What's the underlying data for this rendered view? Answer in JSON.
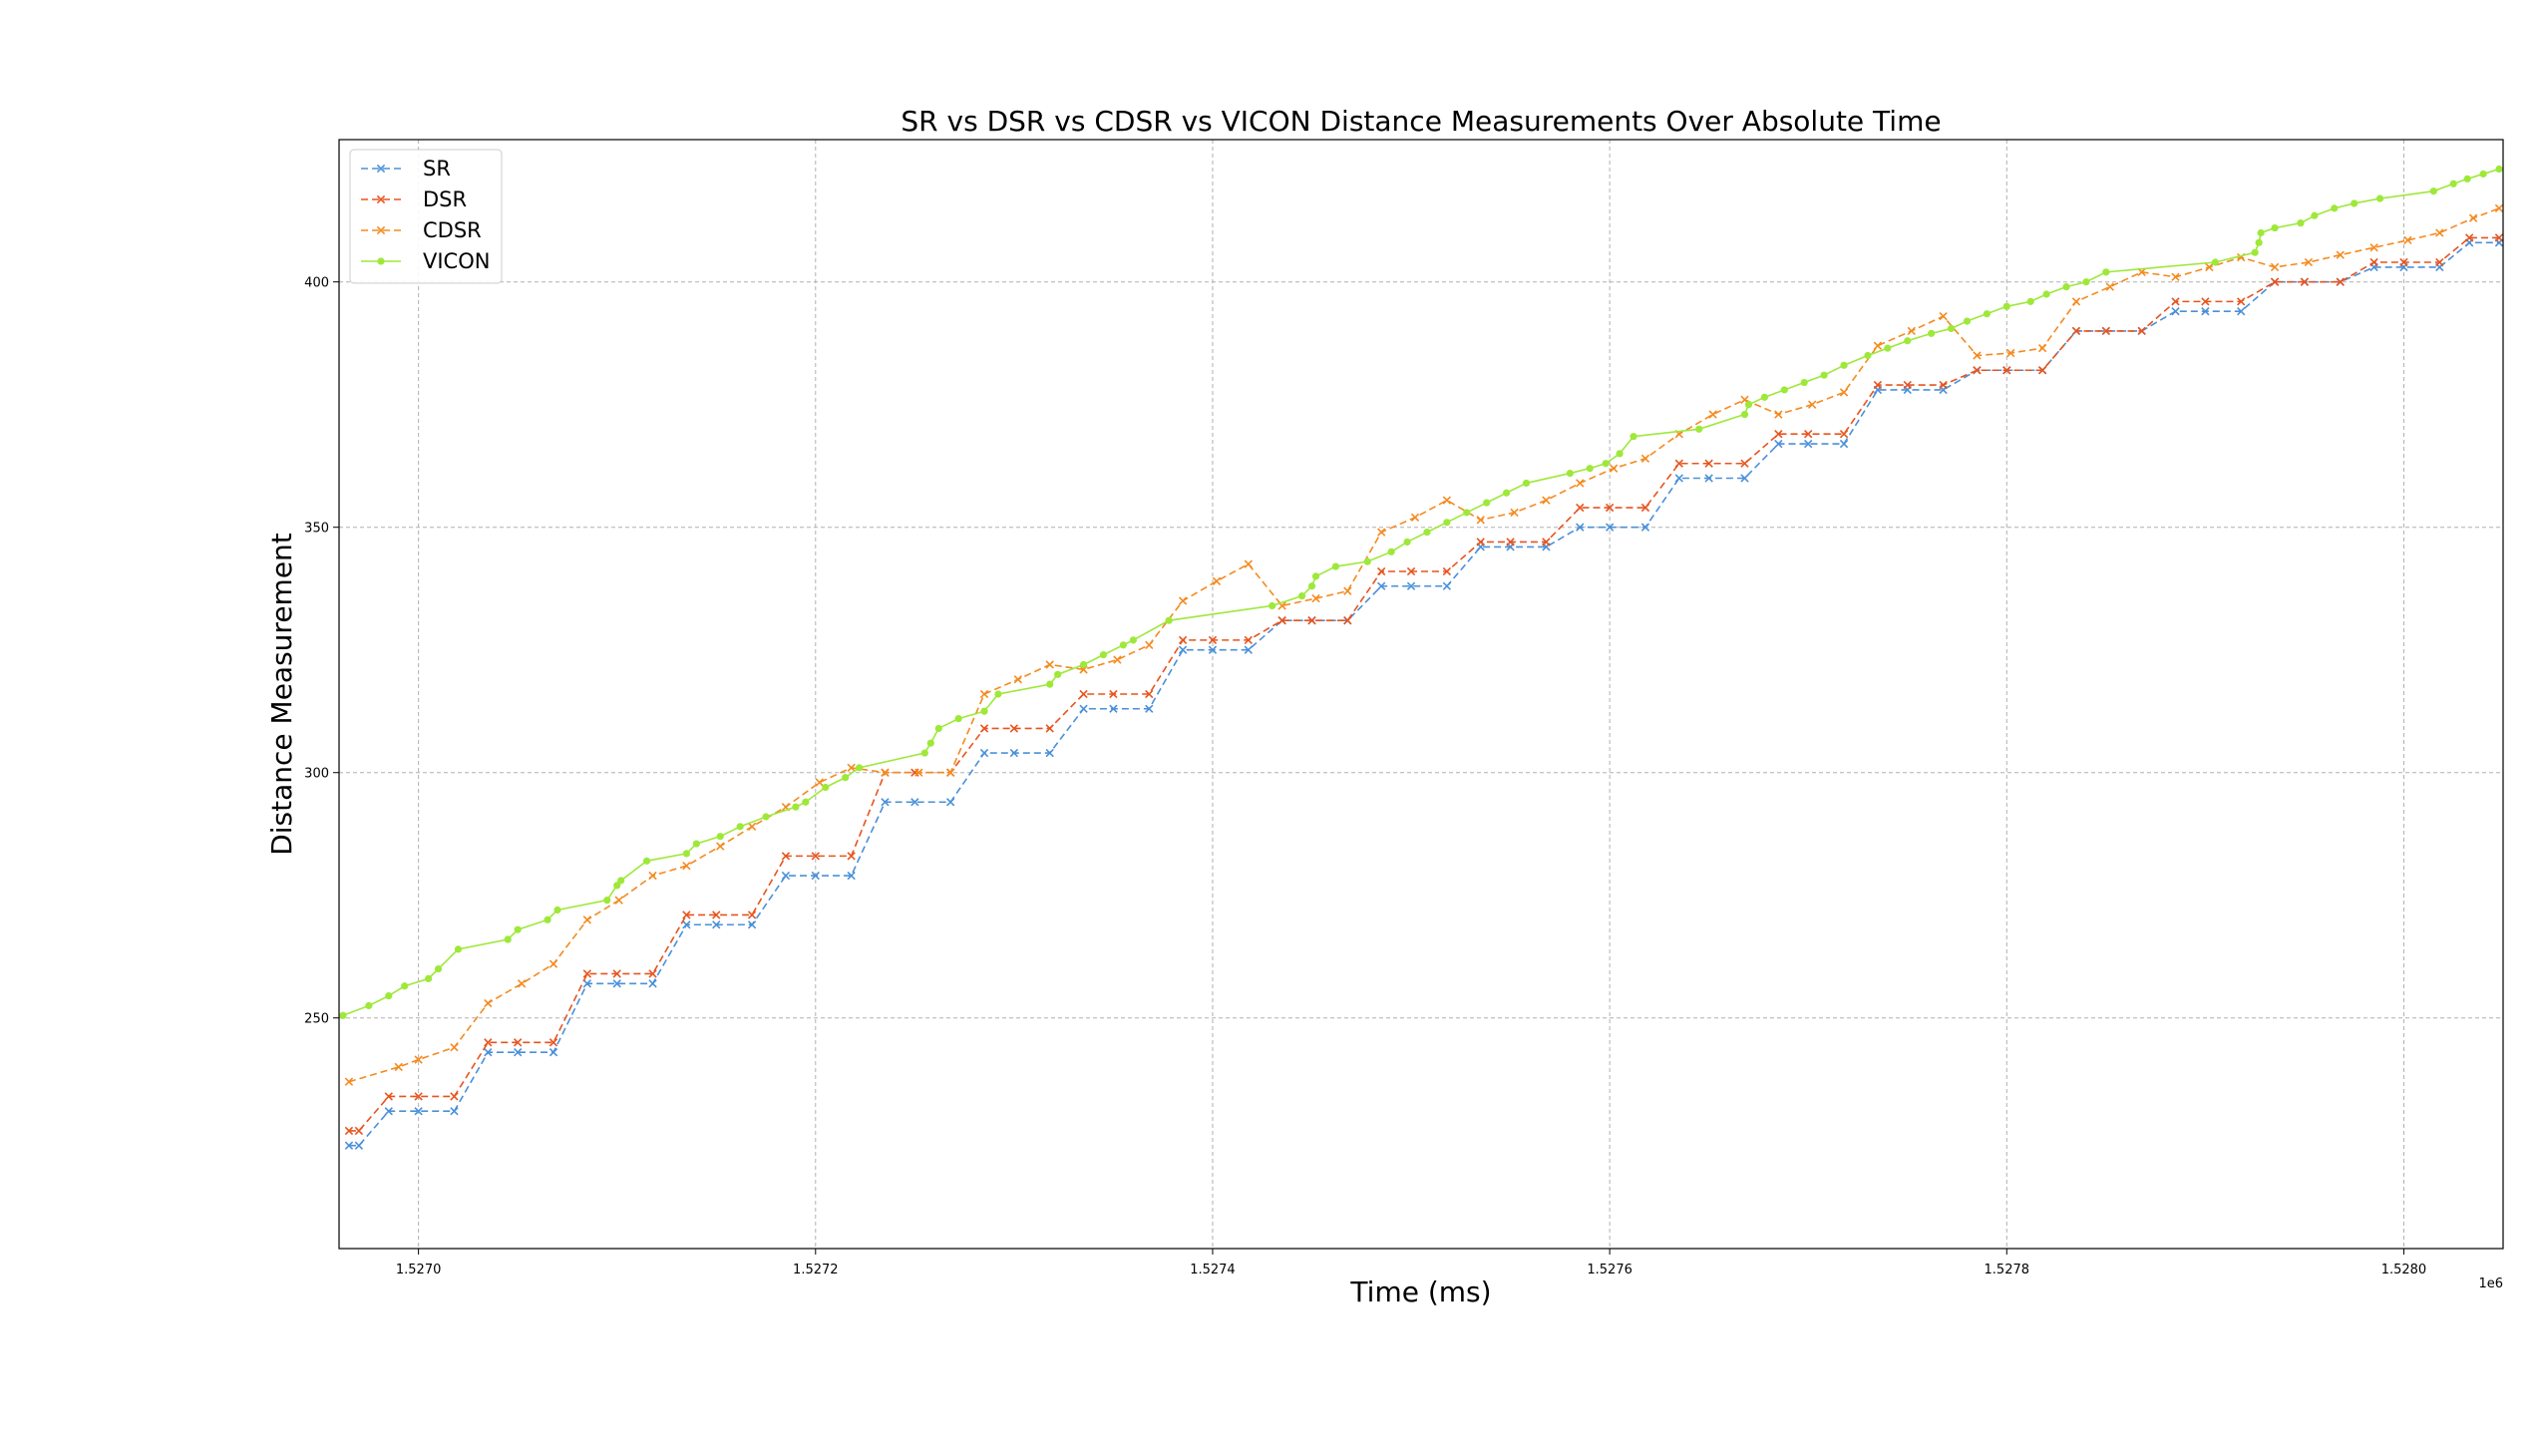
{
  "chart_data": {
    "type": "line",
    "title": "SR vs DSR vs CDSR vs VICON Distance Measurements Over Absolute Time",
    "xlabel": "Time (ms)",
    "ylabel": "Distance Measurement",
    "x_offset_label": "1e6",
    "xlim": [
      1.52696,
      1.52805
    ],
    "ylim": [
      203,
      429
    ],
    "x_ticks": [
      1.527,
      1.5272,
      1.5274,
      1.5276,
      1.5278,
      1.528
    ],
    "x_tick_labels": [
      "1.5270",
      "1.5272",
      "1.5274",
      "1.5276",
      "1.5278",
      "1.5280"
    ],
    "y_ticks": [
      250,
      300,
      350,
      400
    ],
    "y_tick_labels": [
      "250",
      "300",
      "350",
      "400"
    ],
    "grid": true,
    "legend_position": "top-left",
    "series": [
      {
        "name": "SR",
        "color": "#4a90d9",
        "marker": "x",
        "linestyle": "dashed",
        "points": [
          [
            1.526965,
            224
          ],
          [
            1.52697,
            224
          ],
          [
            1.526985,
            231
          ],
          [
            1.527,
            231
          ],
          [
            1.527018,
            231
          ],
          [
            1.527035,
            243
          ],
          [
            1.52705,
            243
          ],
          [
            1.527068,
            243
          ],
          [
            1.527085,
            257
          ],
          [
            1.5271,
            257
          ],
          [
            1.527118,
            257
          ],
          [
            1.527135,
            269
          ],
          [
            1.52715,
            269
          ],
          [
            1.527168,
            269
          ],
          [
            1.527185,
            279
          ],
          [
            1.5272,
            279
          ],
          [
            1.527218,
            279
          ],
          [
            1.527235,
            294
          ],
          [
            1.52725,
            294
          ],
          [
            1.527268,
            294
          ],
          [
            1.527285,
            304
          ],
          [
            1.5273,
            304
          ],
          [
            1.527318,
            304
          ],
          [
            1.527335,
            313
          ],
          [
            1.52735,
            313
          ],
          [
            1.527368,
            313
          ],
          [
            1.527385,
            325
          ],
          [
            1.5274,
            325
          ],
          [
            1.527418,
            325
          ],
          [
            1.527435,
            331
          ],
          [
            1.52745,
            331
          ],
          [
            1.527468,
            331
          ],
          [
            1.527485,
            338
          ],
          [
            1.5275,
            338
          ],
          [
            1.527518,
            338
          ],
          [
            1.527535,
            346
          ],
          [
            1.52755,
            346
          ],
          [
            1.527568,
            346
          ],
          [
            1.527585,
            350
          ],
          [
            1.5276,
            350
          ],
          [
            1.527618,
            350
          ],
          [
            1.527635,
            360
          ],
          [
            1.52765,
            360
          ],
          [
            1.527668,
            360
          ],
          [
            1.527685,
            367
          ],
          [
            1.5277,
            367
          ],
          [
            1.527718,
            367
          ],
          [
            1.527735,
            378
          ],
          [
            1.52775,
            378
          ],
          [
            1.527768,
            378
          ],
          [
            1.527785,
            382
          ],
          [
            1.5278,
            382
          ],
          [
            1.527818,
            382
          ],
          [
            1.527835,
            390
          ],
          [
            1.52785,
            390
          ],
          [
            1.527868,
            390
          ],
          [
            1.527885,
            394
          ],
          [
            1.5279,
            394
          ],
          [
            1.527918,
            394
          ],
          [
            1.527935,
            400
          ],
          [
            1.52795,
            400
          ],
          [
            1.527968,
            400
          ],
          [
            1.527985,
            403
          ],
          [
            1.528,
            403
          ],
          [
            1.528018,
            403
          ],
          [
            1.528033,
            408
          ],
          [
            1.528048,
            408
          ]
        ]
      },
      {
        "name": "DSR",
        "color": "#e8541e",
        "marker": "x",
        "linestyle": "dashed",
        "points": [
          [
            1.526965,
            227
          ],
          [
            1.52697,
            227
          ],
          [
            1.526985,
            234
          ],
          [
            1.527,
            234
          ],
          [
            1.527018,
            234
          ],
          [
            1.527035,
            245
          ],
          [
            1.52705,
            245
          ],
          [
            1.527068,
            245
          ],
          [
            1.527085,
            259
          ],
          [
            1.5271,
            259
          ],
          [
            1.527118,
            259
          ],
          [
            1.527135,
            271
          ],
          [
            1.52715,
            271
          ],
          [
            1.527168,
            271
          ],
          [
            1.527185,
            283
          ],
          [
            1.5272,
            283
          ],
          [
            1.527218,
            283
          ],
          [
            1.527235,
            300
          ],
          [
            1.52725,
            300
          ],
          [
            1.527268,
            300
          ],
          [
            1.527285,
            309
          ],
          [
            1.5273,
            309
          ],
          [
            1.527318,
            309
          ],
          [
            1.527335,
            316
          ],
          [
            1.52735,
            316
          ],
          [
            1.527368,
            316
          ],
          [
            1.527385,
            327
          ],
          [
            1.5274,
            327
          ],
          [
            1.527418,
            327
          ],
          [
            1.527435,
            331
          ],
          [
            1.52745,
            331
          ],
          [
            1.527468,
            331
          ],
          [
            1.527485,
            341
          ],
          [
            1.5275,
            341
          ],
          [
            1.527518,
            341
          ],
          [
            1.527535,
            347
          ],
          [
            1.52755,
            347
          ],
          [
            1.527568,
            347
          ],
          [
            1.527585,
            354
          ],
          [
            1.5276,
            354
          ],
          [
            1.527618,
            354
          ],
          [
            1.527635,
            363
          ],
          [
            1.52765,
            363
          ],
          [
            1.527668,
            363
          ],
          [
            1.527685,
            369
          ],
          [
            1.5277,
            369
          ],
          [
            1.527718,
            369
          ],
          [
            1.527735,
            379
          ],
          [
            1.52775,
            379
          ],
          [
            1.527768,
            379
          ],
          [
            1.527785,
            382
          ],
          [
            1.5278,
            382
          ],
          [
            1.527818,
            382
          ],
          [
            1.527835,
            390
          ],
          [
            1.52785,
            390
          ],
          [
            1.527868,
            390
          ],
          [
            1.527885,
            396
          ],
          [
            1.5279,
            396
          ],
          [
            1.527918,
            396
          ],
          [
            1.527935,
            400
          ],
          [
            1.52795,
            400
          ],
          [
            1.527968,
            400
          ],
          [
            1.527985,
            404
          ],
          [
            1.528,
            404
          ],
          [
            1.528018,
            404
          ],
          [
            1.528033,
            409
          ],
          [
            1.528048,
            409
          ]
        ]
      },
      {
        "name": "CDSR",
        "color": "#f58a1f",
        "marker": "x",
        "linestyle": "dashed",
        "points": [
          [
            1.526965,
            237
          ],
          [
            1.52699,
            240
          ],
          [
            1.527,
            241.5
          ],
          [
            1.527018,
            244
          ],
          [
            1.527035,
            253
          ],
          [
            1.527052,
            257
          ],
          [
            1.527068,
            261
          ],
          [
            1.527085,
            270
          ],
          [
            1.527101,
            274
          ],
          [
            1.527118,
            279
          ],
          [
            1.527135,
            281
          ],
          [
            1.527152,
            285
          ],
          [
            1.527168,
            289
          ],
          [
            1.527185,
            293
          ],
          [
            1.527202,
            298
          ],
          [
            1.527218,
            301
          ],
          [
            1.527235,
            300
          ],
          [
            1.527252,
            300
          ],
          [
            1.527268,
            300
          ],
          [
            1.527285,
            316
          ],
          [
            1.527302,
            319
          ],
          [
            1.527318,
            322
          ],
          [
            1.527335,
            321
          ],
          [
            1.527352,
            323
          ],
          [
            1.527368,
            326
          ],
          [
            1.527385,
            335
          ],
          [
            1.527402,
            339
          ],
          [
            1.527418,
            342.5
          ],
          [
            1.527435,
            334
          ],
          [
            1.527452,
            335.5
          ],
          [
            1.527468,
            337
          ],
          [
            1.527485,
            349
          ],
          [
            1.527502,
            352
          ],
          [
            1.527518,
            355.5
          ],
          [
            1.527535,
            351.5
          ],
          [
            1.527552,
            353
          ],
          [
            1.527568,
            355.5
          ],
          [
            1.527585,
            359
          ],
          [
            1.527602,
            362
          ],
          [
            1.527618,
            364
          ],
          [
            1.527635,
            369
          ],
          [
            1.527652,
            373
          ],
          [
            1.527668,
            376
          ],
          [
            1.527685,
            373
          ],
          [
            1.527702,
            375
          ],
          [
            1.527718,
            377.5
          ],
          [
            1.527735,
            387
          ],
          [
            1.527752,
            390
          ],
          [
            1.527768,
            393
          ],
          [
            1.527785,
            385
          ],
          [
            1.527802,
            385.5
          ],
          [
            1.527818,
            386.5
          ],
          [
            1.527835,
            396
          ],
          [
            1.527852,
            399
          ],
          [
            1.527868,
            402
          ],
          [
            1.527885,
            401
          ],
          [
            1.527902,
            403
          ],
          [
            1.527918,
            405
          ],
          [
            1.527935,
            403
          ],
          [
            1.527952,
            404
          ],
          [
            1.527968,
            405.5
          ],
          [
            1.527985,
            407
          ],
          [
            1.528002,
            408.5
          ],
          [
            1.528018,
            410
          ],
          [
            1.528035,
            413
          ],
          [
            1.528048,
            415
          ]
        ]
      },
      {
        "name": "VICON",
        "color": "#9ee83a",
        "marker": "o",
        "linestyle": "solid",
        "points": [
          [
            1.526962,
            250.5
          ],
          [
            1.526975,
            252.5
          ],
          [
            1.526985,
            254.5
          ],
          [
            1.526993,
            256.5
          ],
          [
            1.527005,
            258
          ],
          [
            1.52701,
            260
          ],
          [
            1.52702,
            264
          ],
          [
            1.527045,
            266
          ],
          [
            1.52705,
            268
          ],
          [
            1.527065,
            270
          ],
          [
            1.52707,
            272
          ],
          [
            1.527095,
            274
          ],
          [
            1.5271,
            277
          ],
          [
            1.527102,
            278
          ],
          [
            1.527115,
            282
          ],
          [
            1.527135,
            283.5
          ],
          [
            1.52714,
            285.5
          ],
          [
            1.527152,
            287
          ],
          [
            1.527162,
            289
          ],
          [
            1.527175,
            291
          ],
          [
            1.52719,
            293
          ],
          [
            1.527195,
            294
          ],
          [
            1.527205,
            297
          ],
          [
            1.527215,
            299
          ],
          [
            1.527222,
            301
          ],
          [
            1.527255,
            304
          ],
          [
            1.527258,
            306
          ],
          [
            1.527262,
            309
          ],
          [
            1.527272,
            311
          ],
          [
            1.527285,
            312.5
          ],
          [
            1.527292,
            316
          ],
          [
            1.527318,
            318
          ],
          [
            1.527322,
            320
          ],
          [
            1.527335,
            322
          ],
          [
            1.527345,
            324
          ],
          [
            1.527355,
            326
          ],
          [
            1.52736,
            327
          ],
          [
            1.527378,
            331
          ],
          [
            1.52743,
            334
          ],
          [
            1.527445,
            336
          ],
          [
            1.52745,
            338
          ],
          [
            1.527452,
            340
          ],
          [
            1.527462,
            342
          ],
          [
            1.527478,
            343
          ],
          [
            1.52749,
            345
          ],
          [
            1.527498,
            347
          ],
          [
            1.527508,
            349
          ],
          [
            1.527518,
            351
          ],
          [
            1.527528,
            353
          ],
          [
            1.527538,
            355
          ],
          [
            1.527548,
            357
          ],
          [
            1.527558,
            359
          ],
          [
            1.52758,
            361
          ],
          [
            1.52759,
            362
          ],
          [
            1.527598,
            363
          ],
          [
            1.527605,
            365
          ],
          [
            1.527612,
            368.5
          ],
          [
            1.527645,
            370
          ],
          [
            1.527668,
            373
          ],
          [
            1.52767,
            375
          ],
          [
            1.527678,
            376.5
          ],
          [
            1.527688,
            378
          ],
          [
            1.527698,
            379.5
          ],
          [
            1.527708,
            381
          ],
          [
            1.527718,
            383
          ],
          [
            1.52773,
            385
          ],
          [
            1.52774,
            386.5
          ],
          [
            1.52775,
            388
          ],
          [
            1.527762,
            389.5
          ],
          [
            1.527772,
            390.5
          ],
          [
            1.52778,
            392
          ],
          [
            1.52779,
            393.5
          ],
          [
            1.5278,
            395
          ],
          [
            1.527812,
            396
          ],
          [
            1.52782,
            397.5
          ],
          [
            1.52783,
            399
          ],
          [
            1.52784,
            400
          ],
          [
            1.52785,
            402
          ],
          [
            1.527905,
            404
          ],
          [
            1.527925,
            406
          ],
          [
            1.527927,
            408
          ],
          [
            1.527928,
            410
          ],
          [
            1.527935,
            411
          ],
          [
            1.527948,
            412
          ],
          [
            1.527955,
            413.5
          ],
          [
            1.527965,
            415
          ],
          [
            1.527975,
            416
          ],
          [
            1.527988,
            417
          ],
          [
            1.528015,
            418.5
          ],
          [
            1.528025,
            420
          ],
          [
            1.528032,
            421
          ],
          [
            1.52804,
            422
          ],
          [
            1.528048,
            423
          ]
        ]
      }
    ]
  }
}
